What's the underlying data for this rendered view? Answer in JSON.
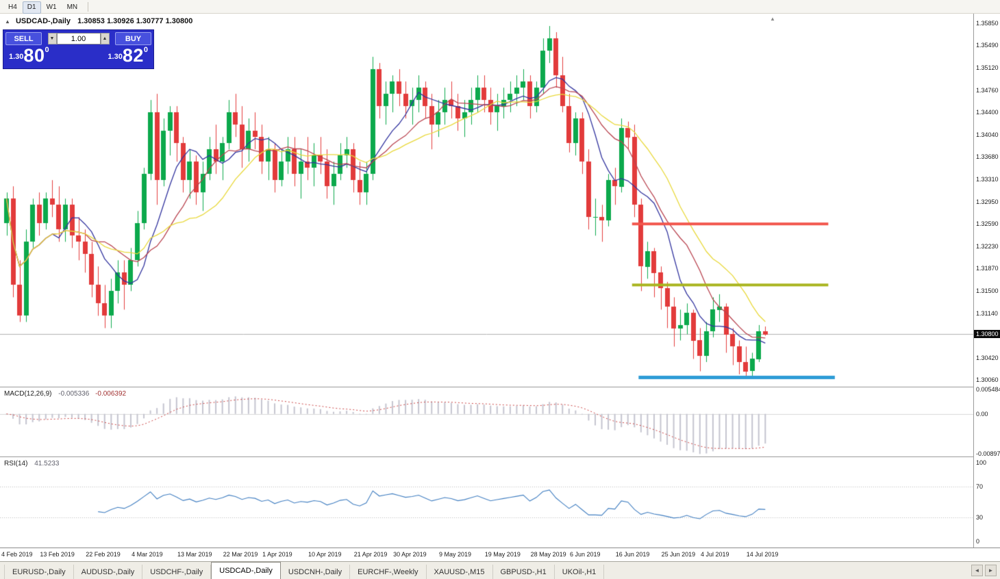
{
  "toolbar": {
    "periods": [
      "H4",
      "D1",
      "W1",
      "MN"
    ],
    "active_period": "D1"
  },
  "chart_header": {
    "title": "USDCAD-,Daily",
    "ohlc": "1.30853 1.30926 1.30777 1.30800"
  },
  "trade_panel": {
    "sell_label": "SELL",
    "buy_label": "BUY",
    "volume": "1.00",
    "sell_price": {
      "prefix": "1.30",
      "big": "80",
      "sup": "0"
    },
    "buy_price": {
      "prefix": "1.30",
      "big": "82",
      "sup": "0"
    }
  },
  "icons": {
    "collapse": "▲",
    "volume_down": "▼",
    "volume_up": "▲",
    "shift_marker": "▲",
    "tabs_left": "◄",
    "tabs_right": "►"
  },
  "indicator_labels": {
    "macd_name": "MACD(12,26,9)",
    "macd_main_value": "-0.005336",
    "macd_signal_value": "-0.006392",
    "rsi_name": "RSI(14)",
    "rsi_value": "41.5233"
  },
  "bottom_tabs": {
    "tabs": [
      "EURUSD-,Daily",
      "AUDUSD-,Daily",
      "USDCHF-,Daily",
      "USDCAD-,Daily",
      "USDCNH-,Daily",
      "EURCHF-,Weekly",
      "XAUUSD-,M15",
      "GBPUSD-,H1",
      "UKOil-,H1"
    ],
    "active": "USDCAD-,Daily"
  },
  "chart_data": {
    "type": "candlestick",
    "symbol": "USDCAD-",
    "timeframe": "Daily",
    "ohlc_current": {
      "open": 1.30853,
      "high": 1.30926,
      "low": 1.30777,
      "close": 1.308
    },
    "candle_colors": {
      "up": "#0ca94c",
      "down": "#e23b3b"
    },
    "price_axis": {
      "min": 1.2995,
      "max": 1.36,
      "ticks": [
        "1.35850",
        "1.35490",
        "1.35120",
        "1.34760",
        "1.34400",
        "1.34040",
        "1.33680",
        "1.33310",
        "1.32950",
        "1.32590",
        "1.32230",
        "1.31870",
        "1.31500",
        "1.31140",
        "1.30420",
        "1.30060"
      ],
      "current_price": 1.308,
      "current_price_label": "1.30800"
    },
    "moving_averages": [
      {
        "period": 8,
        "method": "sma",
        "color": "#31339e"
      },
      {
        "period": 13,
        "method": "sma",
        "color": "#b8424e"
      },
      {
        "period": 20,
        "method": "sma",
        "color": "#e8d83a"
      }
    ],
    "horizontal_lines": [
      {
        "price": 1.3259,
        "color": "#f2564d",
        "thickness": 4,
        "start_index": 96,
        "end_index": 126
      },
      {
        "price": 1.316,
        "color": "#a9b41f",
        "thickness": 4,
        "start_index": 96,
        "end_index": 126
      },
      {
        "price": 1.301,
        "color": "#2e9cd6",
        "thickness": 5,
        "start_index": 97,
        "end_index": 127
      }
    ],
    "macd": {
      "fast": 12,
      "slow": 26,
      "signal": 9,
      "axis_ticks": [
        "0.005484",
        "0.00",
        "-0.008973"
      ],
      "range": [
        0.006,
        -0.0095
      ],
      "histogram_color": "#c4c4cf",
      "signal_color": "#c94040"
    },
    "rsi": {
      "period": 14,
      "axis_ticks": [
        "100",
        "70",
        "30",
        "0"
      ],
      "levels": [
        70,
        30
      ],
      "range": [
        -7,
        107
      ],
      "line_color": "#3f7dc0"
    },
    "date_labels": [
      {
        "label": "4 Feb 2019",
        "index": 1
      },
      {
        "label": "13 Feb 2019",
        "index": 8
      },
      {
        "label": "22 Feb 2019",
        "index": 15
      },
      {
        "label": "4 Mar 2019",
        "index": 22
      },
      {
        "label": "13 Mar 2019",
        "index": 29
      },
      {
        "label": "22 Mar 2019",
        "index": 36
      },
      {
        "label": "1 Apr 2019",
        "index": 42
      },
      {
        "label": "10 Apr 2019",
        "index": 49
      },
      {
        "label": "21 Apr 2019",
        "index": 56
      },
      {
        "label": "30 Apr 2019",
        "index": 62
      },
      {
        "label": "9 May 2019",
        "index": 69
      },
      {
        "label": "19 May 2019",
        "index": 76
      },
      {
        "label": "28 May 2019",
        "index": 83
      },
      {
        "label": "6 Jun 2019",
        "index": 89
      },
      {
        "label": "16 Jun 2019",
        "index": 96
      },
      {
        "label": "25 Jun 2019",
        "index": 103
      },
      {
        "label": "4 Jul 2019",
        "index": 109
      },
      {
        "label": "14 Jul 2019",
        "index": 116
      }
    ],
    "candles": [
      [
        1.326,
        1.331,
        1.324,
        1.33
      ],
      [
        1.33,
        1.332,
        1.314,
        1.316
      ],
      [
        1.316,
        1.32,
        1.31,
        1.311
      ],
      [
        1.311,
        1.325,
        1.31,
        1.323
      ],
      [
        1.323,
        1.33,
        1.322,
        1.329
      ],
      [
        1.329,
        1.331,
        1.324,
        1.326
      ],
      [
        1.326,
        1.331,
        1.325,
        1.33
      ],
      [
        1.33,
        1.333,
        1.327,
        1.329
      ],
      [
        1.329,
        1.332,
        1.323,
        1.325
      ],
      [
        1.325,
        1.33,
        1.323,
        1.329
      ],
      [
        1.329,
        1.33,
        1.322,
        1.324
      ],
      [
        1.324,
        1.327,
        1.32,
        1.323
      ],
      [
        1.323,
        1.325,
        1.318,
        1.321
      ],
      [
        1.321,
        1.323,
        1.314,
        1.316
      ],
      [
        1.316,
        1.319,
        1.311,
        1.313
      ],
      [
        1.313,
        1.316,
        1.309,
        1.311
      ],
      [
        1.311,
        1.317,
        1.309,
        1.315
      ],
      [
        1.315,
        1.32,
        1.313,
        1.318
      ],
      [
        1.318,
        1.32,
        1.312,
        1.316
      ],
      [
        1.316,
        1.322,
        1.315,
        1.32
      ],
      [
        1.32,
        1.328,
        1.319,
        1.326
      ],
      [
        1.326,
        1.335,
        1.325,
        1.334
      ],
      [
        1.334,
        1.346,
        1.333,
        1.344
      ],
      [
        1.344,
        1.347,
        1.329,
        1.333
      ],
      [
        1.333,
        1.343,
        1.332,
        1.341
      ],
      [
        1.341,
        1.345,
        1.337,
        1.344
      ],
      [
        1.344,
        1.345,
        1.336,
        1.339
      ],
      [
        1.339,
        1.34,
        1.331,
        1.333
      ],
      [
        1.333,
        1.338,
        1.33,
        1.336
      ],
      [
        1.336,
        1.337,
        1.329,
        1.331
      ],
      [
        1.331,
        1.336,
        1.328,
        1.334
      ],
      [
        1.334,
        1.34,
        1.333,
        1.338
      ],
      [
        1.338,
        1.342,
        1.334,
        1.336
      ],
      [
        1.336,
        1.34,
        1.333,
        1.339
      ],
      [
        1.339,
        1.346,
        1.338,
        1.344
      ],
      [
        1.344,
        1.347,
        1.34,
        1.342
      ],
      [
        1.342,
        1.345,
        1.335,
        1.338
      ],
      [
        1.338,
        1.343,
        1.336,
        1.341
      ],
      [
        1.341,
        1.344,
        1.338,
        1.34
      ],
      [
        1.34,
        1.342,
        1.334,
        1.336
      ],
      [
        1.336,
        1.34,
        1.333,
        1.338
      ],
      [
        1.338,
        1.339,
        1.331,
        1.333
      ],
      [
        1.333,
        1.338,
        1.332,
        1.336
      ],
      [
        1.336,
        1.34,
        1.334,
        1.338
      ],
      [
        1.338,
        1.34,
        1.332,
        1.334
      ],
      [
        1.334,
        1.338,
        1.33,
        1.336
      ],
      [
        1.336,
        1.34,
        1.333,
        1.335
      ],
      [
        1.335,
        1.339,
        1.332,
        1.337
      ],
      [
        1.337,
        1.34,
        1.334,
        1.336
      ],
      [
        1.336,
        1.338,
        1.33,
        1.332
      ],
      [
        1.332,
        1.336,
        1.329,
        1.334
      ],
      [
        1.334,
        1.339,
        1.333,
        1.337
      ],
      [
        1.337,
        1.34,
        1.335,
        1.338
      ],
      [
        1.338,
        1.339,
        1.331,
        1.333
      ],
      [
        1.333,
        1.336,
        1.329,
        1.331
      ],
      [
        1.331,
        1.336,
        1.329,
        1.334
      ],
      [
        1.334,
        1.353,
        1.333,
        1.351
      ],
      [
        1.351,
        1.352,
        1.343,
        1.345
      ],
      [
        1.345,
        1.349,
        1.342,
        1.347
      ],
      [
        1.347,
        1.35,
        1.344,
        1.349
      ],
      [
        1.349,
        1.351,
        1.345,
        1.347
      ],
      [
        1.347,
        1.349,
        1.343,
        1.345
      ],
      [
        1.345,
        1.348,
        1.342,
        1.346
      ],
      [
        1.346,
        1.35,
        1.344,
        1.348
      ],
      [
        1.348,
        1.349,
        1.343,
        1.345
      ],
      [
        1.345,
        1.347,
        1.338,
        1.342
      ],
      [
        1.342,
        1.346,
        1.34,
        1.344
      ],
      [
        1.344,
        1.348,
        1.342,
        1.346
      ],
      [
        1.346,
        1.349,
        1.343,
        1.345
      ],
      [
        1.345,
        1.347,
        1.341,
        1.343
      ],
      [
        1.343,
        1.346,
        1.34,
        1.344
      ],
      [
        1.344,
        1.348,
        1.342,
        1.346
      ],
      [
        1.346,
        1.35,
        1.344,
        1.348
      ],
      [
        1.348,
        1.35,
        1.344,
        1.346
      ],
      [
        1.346,
        1.348,
        1.342,
        1.344
      ],
      [
        1.344,
        1.347,
        1.341,
        1.345
      ],
      [
        1.345,
        1.348,
        1.343,
        1.346
      ],
      [
        1.346,
        1.349,
        1.344,
        1.347
      ],
      [
        1.347,
        1.35,
        1.345,
        1.348
      ],
      [
        1.348,
        1.351,
        1.346,
        1.349
      ],
      [
        1.349,
        1.35,
        1.343,
        1.345
      ],
      [
        1.345,
        1.349,
        1.344,
        1.348
      ],
      [
        1.348,
        1.356,
        1.347,
        1.354
      ],
      [
        1.354,
        1.358,
        1.352,
        1.356
      ],
      [
        1.356,
        1.357,
        1.348,
        1.35
      ],
      [
        1.35,
        1.353,
        1.344,
        1.345
      ],
      [
        1.345,
        1.347,
        1.3375,
        1.339
      ],
      [
        1.339,
        1.344,
        1.337,
        1.343
      ],
      [
        1.343,
        1.344,
        1.334,
        1.336
      ],
      [
        1.336,
        1.338,
        1.325,
        1.327
      ],
      [
        1.327,
        1.33,
        1.324,
        1.327
      ],
      [
        1.327,
        1.329,
        1.323,
        1.3265
      ],
      [
        1.3265,
        1.334,
        1.3255,
        1.333
      ],
      [
        1.333,
        1.335,
        1.329,
        1.332
      ],
      [
        1.332,
        1.343,
        1.331,
        1.3415
      ],
      [
        1.3415,
        1.3425,
        1.338,
        1.34
      ],
      [
        1.34,
        1.342,
        1.327,
        1.329
      ],
      [
        1.329,
        1.33,
        1.315,
        1.319
      ],
      [
        1.319,
        1.323,
        1.317,
        1.3215
      ],
      [
        1.3215,
        1.322,
        1.314,
        1.318
      ],
      [
        1.318,
        1.319,
        1.312,
        1.3155
      ],
      [
        1.3155,
        1.3165,
        1.309,
        1.3125
      ],
      [
        1.3125,
        1.314,
        1.306,
        1.309
      ],
      [
        1.309,
        1.312,
        1.307,
        1.3095
      ],
      [
        1.3095,
        1.313,
        1.308,
        1.3115
      ],
      [
        1.3115,
        1.312,
        1.304,
        1.307
      ],
      [
        1.307,
        1.309,
        1.302,
        1.3045
      ],
      [
        1.3045,
        1.31,
        1.3035,
        1.3085
      ],
      [
        1.3085,
        1.314,
        1.3075,
        1.312
      ],
      [
        1.312,
        1.3145,
        1.31,
        1.3125
      ],
      [
        1.3125,
        1.313,
        1.305,
        1.308
      ],
      [
        1.308,
        1.309,
        1.303,
        1.306
      ],
      [
        1.306,
        1.307,
        1.3015,
        1.3035
      ],
      [
        1.3035,
        1.306,
        1.3008,
        1.302
      ],
      [
        1.302,
        1.305,
        1.3012,
        1.304
      ],
      [
        1.304,
        1.3095,
        1.3035,
        1.3085
      ],
      [
        1.30853,
        1.30926,
        1.30777,
        1.308
      ]
    ]
  }
}
